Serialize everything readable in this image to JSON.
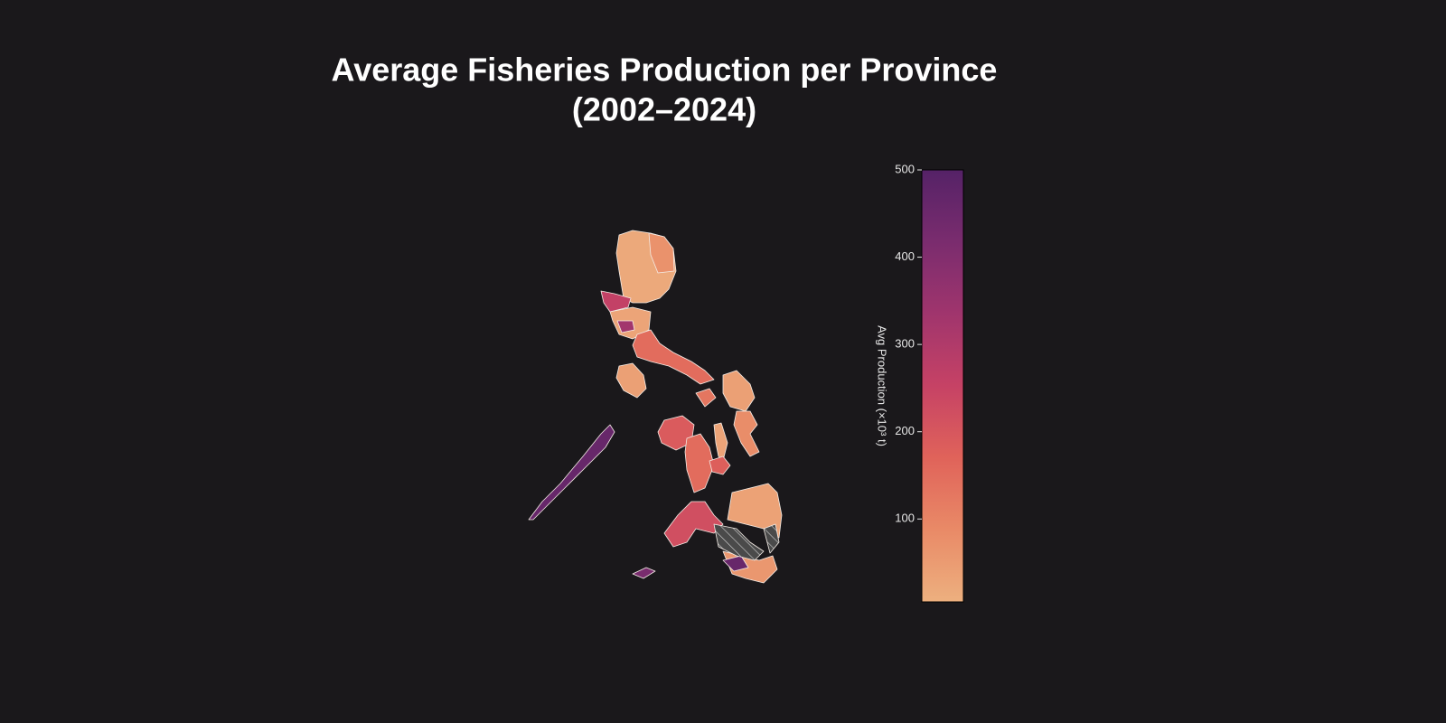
{
  "chart_data": {
    "type": "choropleth",
    "title": [
      "Average Fisheries Production per Province",
      "(2002–2024)"
    ],
    "colorbar_label": "Avg Production (×10³ t)",
    "clim": [
      5,
      500
    ],
    "colorbar_ticks": [
      100,
      200,
      300,
      400,
      500
    ],
    "colormap": [
      "#edb07f",
      "#e98a67",
      "#e0635a",
      "#c64265",
      "#a0356d",
      "#7a2c6e",
      "#552267"
    ],
    "values": [
      20,
      70,
      260,
      30,
      330,
      150,
      40,
      460,
      190,
      150,
      30,
      180,
      130,
      40,
      80,
      220,
      35,
      60,
      460,
      420
    ]
  }
}
